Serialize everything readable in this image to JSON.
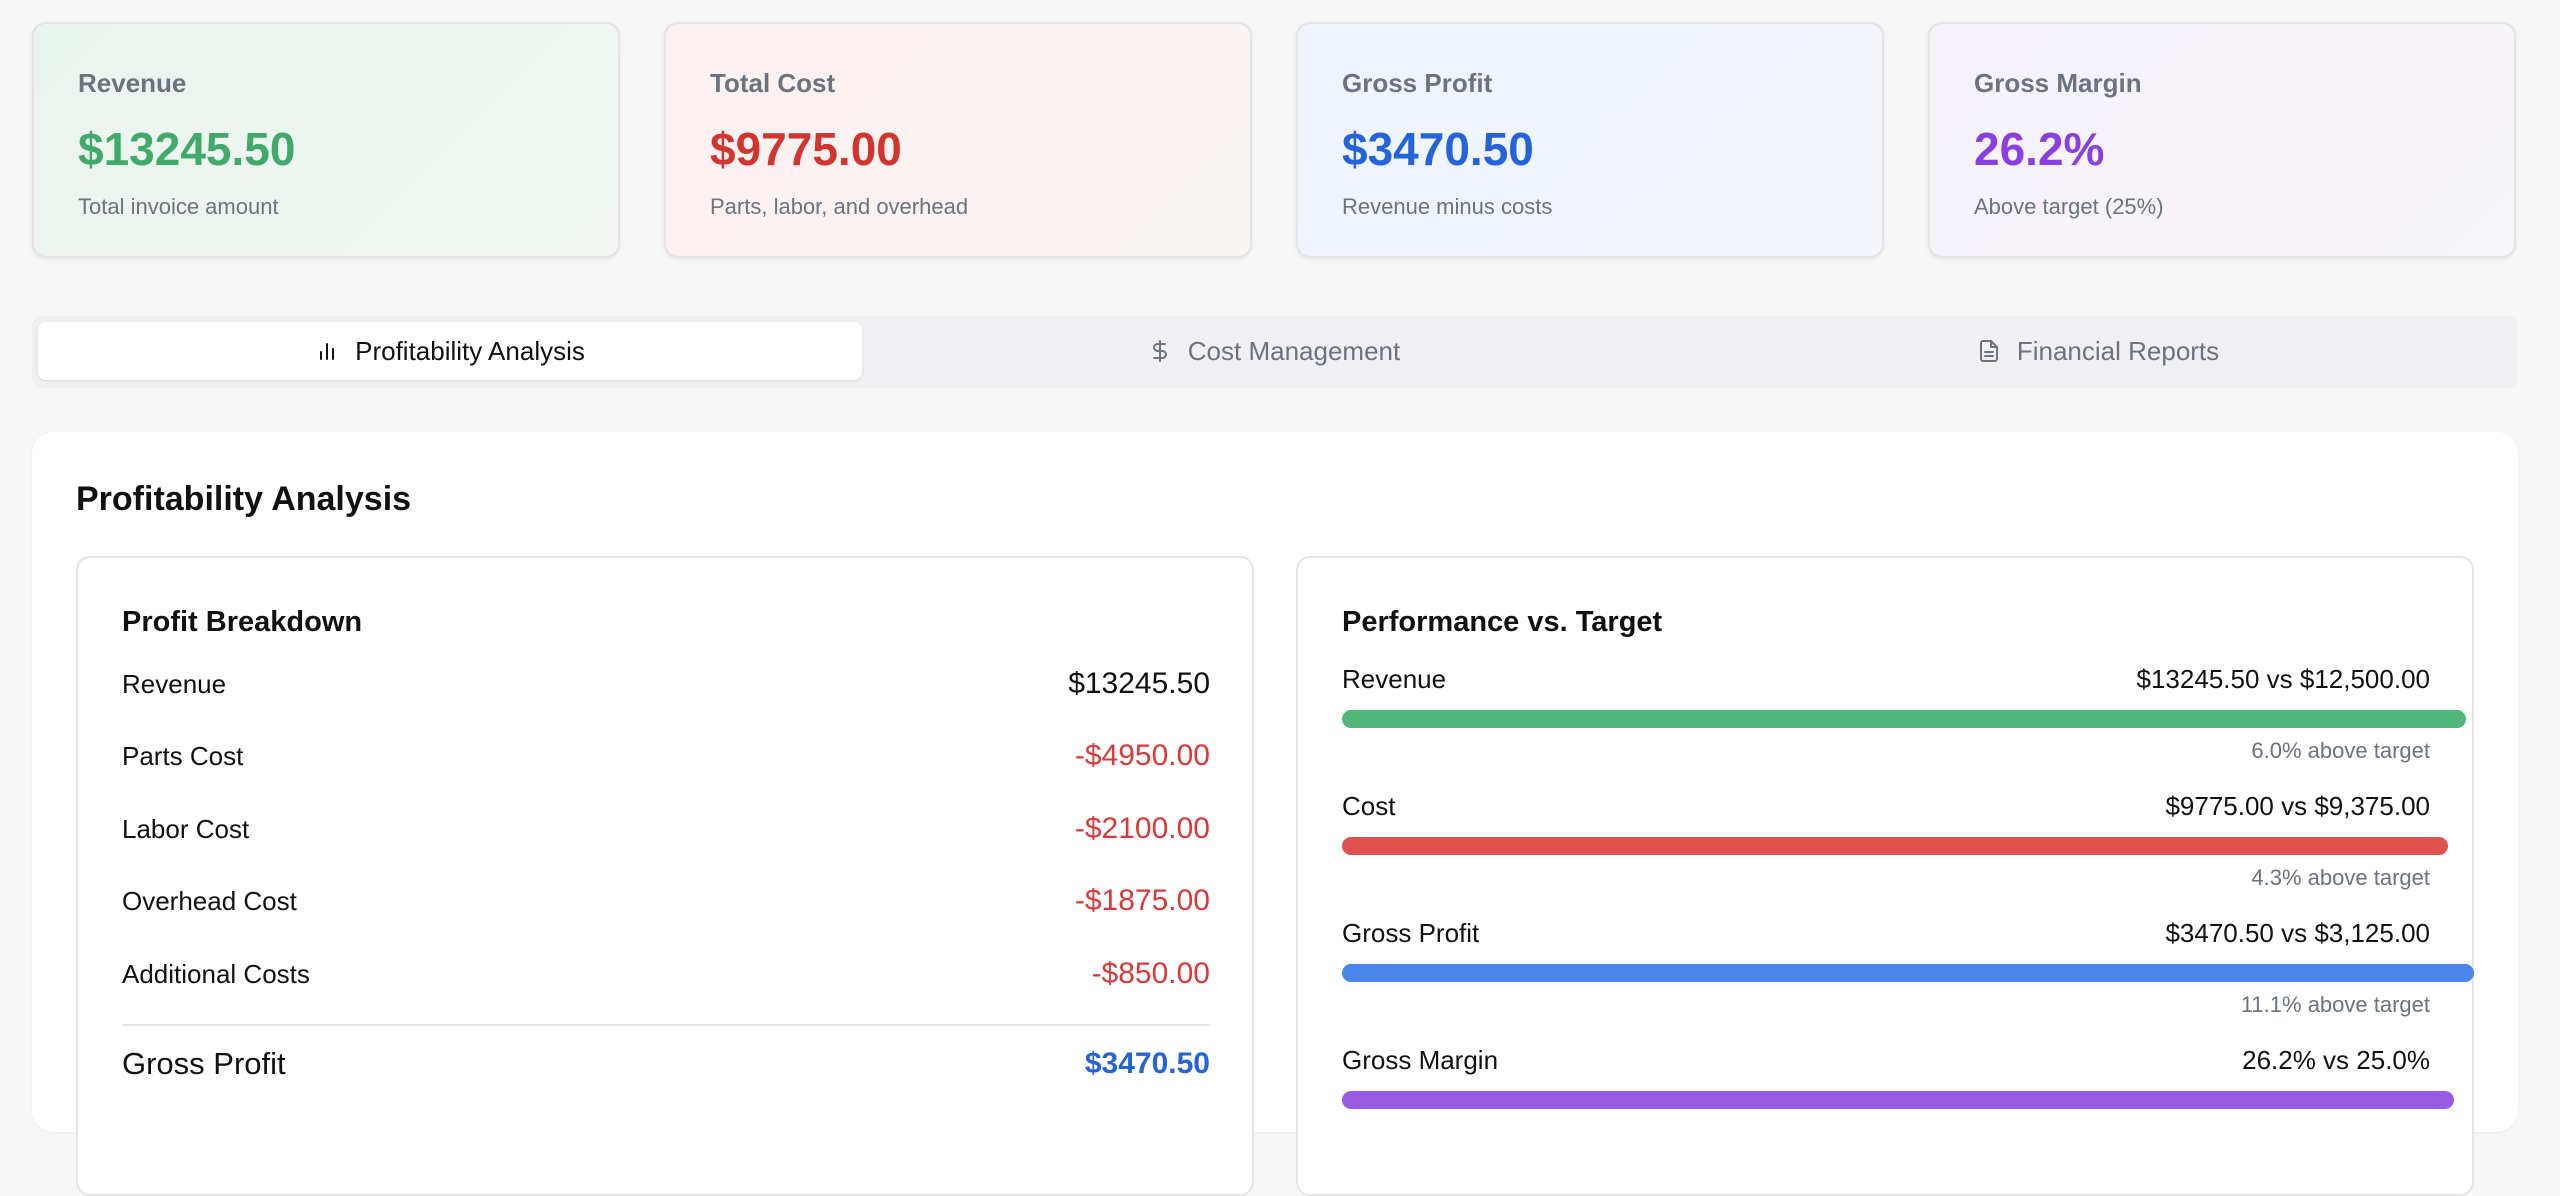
{
  "kpis": [
    {
      "title": "Revenue",
      "value": "$13245.50",
      "subtitle": "Total invoice amount",
      "color": "#3faa6a"
    },
    {
      "title": "Total Cost",
      "value": "$9775.00",
      "subtitle": "Parts, labor, and overhead",
      "color": "#d0362f"
    },
    {
      "title": "Gross Profit",
      "value": "$3470.50",
      "subtitle": "Revenue minus costs",
      "color": "#2563d9"
    },
    {
      "title": "Gross Margin",
      "value": "26.2%",
      "subtitle": "Above target (25%)",
      "color": "#8a3fe0"
    }
  ],
  "tabs": [
    {
      "label": "Profitability Analysis",
      "icon": "bar-chart-icon",
      "active": true
    },
    {
      "label": "Cost Management",
      "icon": "dollar-icon",
      "active": false
    },
    {
      "label": "Financial Reports",
      "icon": "document-icon",
      "active": false
    }
  ],
  "main": {
    "title": "Profitability Analysis",
    "breakdown": {
      "title": "Profit Breakdown",
      "rows": [
        {
          "label": "Revenue",
          "value": "$13245.50"
        },
        {
          "label": "Parts Cost",
          "value": "-$4950.00"
        },
        {
          "label": "Labor Cost",
          "value": "-$2100.00"
        },
        {
          "label": "Overhead Cost",
          "value": "-$1875.00"
        },
        {
          "label": "Additional Costs",
          "value": "-$850.00"
        }
      ],
      "total": {
        "label": "Gross Profit",
        "value": "$3470.50"
      }
    },
    "performance": {
      "title": "Performance vs. Target",
      "rows": [
        {
          "label": "Revenue",
          "value": "$13245.50 vs $12,500.00",
          "note": "6.0% above target",
          "ratio": 1.06,
          "color": "#4fb87a"
        },
        {
          "label": "Cost",
          "value": "$9775.00 vs $9,375.00",
          "note": "4.3% above target",
          "ratio": 1.043,
          "color": "#e0504c"
        },
        {
          "label": "Gross Profit",
          "value": "$3470.50 vs $3,125.00",
          "note": "11.1% above target",
          "ratio": 1.111,
          "color": "#4a86ec"
        },
        {
          "label": "Gross Margin",
          "value": "26.2% vs 25.0%",
          "note": "",
          "ratio": 1.048,
          "color": "#9a5ae6"
        }
      ]
    }
  }
}
